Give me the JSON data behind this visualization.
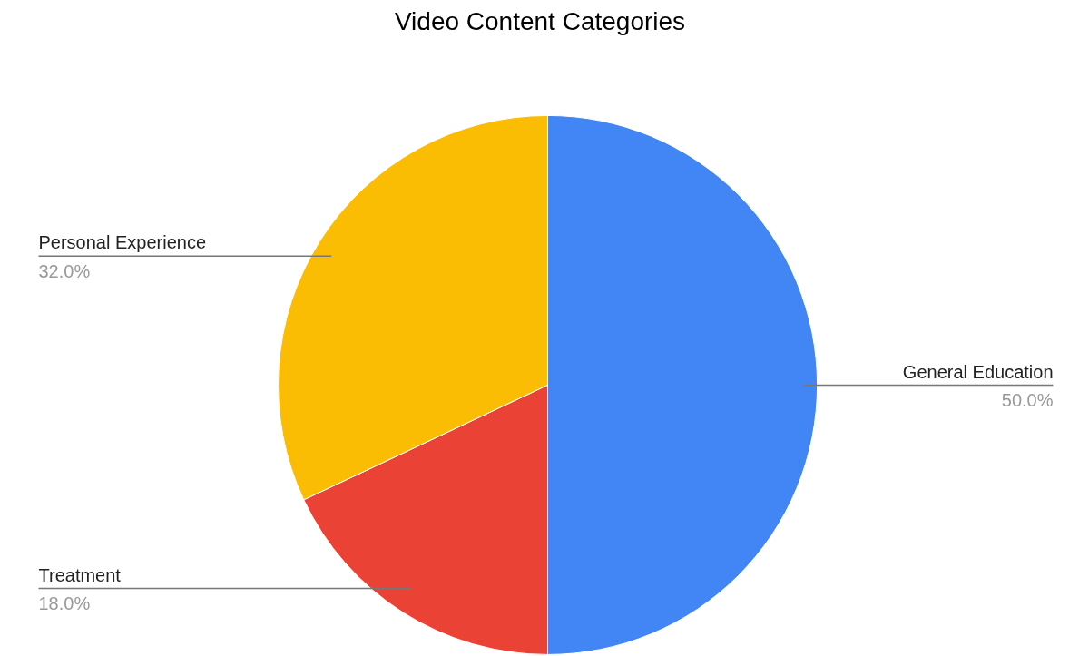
{
  "chart_data": {
    "type": "pie",
    "title": "Video Content Categories",
    "categories": [
      "General Education",
      "Treatment",
      "Personal Experience"
    ],
    "values": [
      50,
      18,
      32
    ],
    "colors": [
      "#4285f4",
      "#ea4335",
      "#fbbc04"
    ],
    "value_labels": [
      "50.0%",
      "18.0%",
      "32.0%"
    ]
  }
}
